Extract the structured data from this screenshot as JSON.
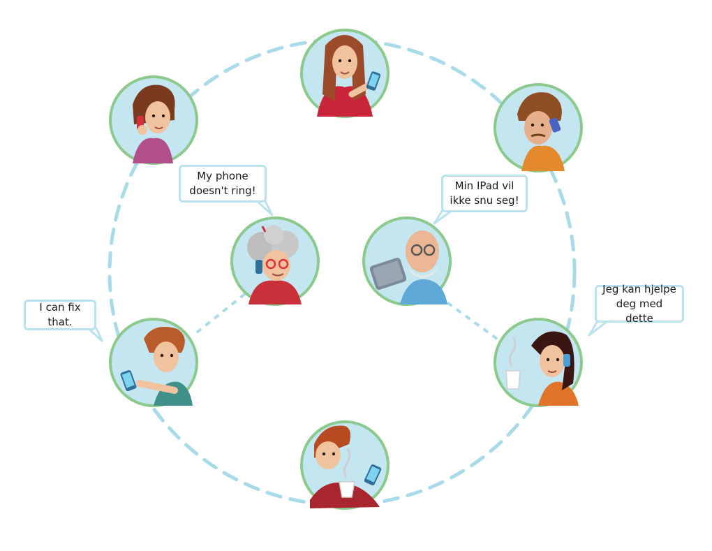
{
  "colors": {
    "ring": "#a8dbe8",
    "circle_fill": "#c4e6f1",
    "circle_stroke": "#8cc98c",
    "bubble_border": "#b7e2ee"
  },
  "people": [
    {
      "id": "woman-top",
      "icon": "woman-with-phone-icon"
    },
    {
      "id": "woman-left",
      "icon": "woman-on-call-icon"
    },
    {
      "id": "man-right",
      "icon": "man-on-call-icon"
    },
    {
      "id": "grandmother",
      "icon": "grandmother-on-call-icon"
    },
    {
      "id": "grandfather",
      "icon": "grandfather-with-tablet-icon"
    },
    {
      "id": "helper-left",
      "icon": "man-with-phone-icon"
    },
    {
      "id": "woman-coffee",
      "icon": "woman-with-coffee-icon"
    },
    {
      "id": "boy-bottom",
      "icon": "boy-with-coffee-and-phone-icon"
    }
  ],
  "bubbles": {
    "phone_ring": "My phone\ndoesn't ring!",
    "ipad": "Min IPad vil\nikke snu seg!",
    "fix": "I can fix that.",
    "help": "Jeg kan hjelpe\ndeg med dette"
  }
}
